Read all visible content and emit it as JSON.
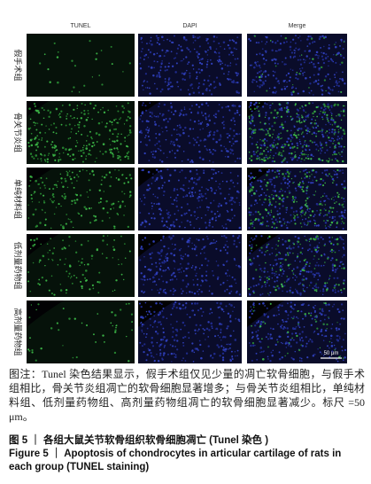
{
  "columns": [
    "TUNEL",
    "DAPI",
    "Merge"
  ],
  "rows": [
    "假手术组",
    "骨关节炎组",
    "单纯材料组",
    "低剂量药物组",
    "高剂量药物组"
  ],
  "scale_bar": "50 μm",
  "caption": "图注：Tunel 染色结果显示，假手术组仅见少量的凋亡软骨细胞，与假手术组相比，骨关节炎组凋亡的软骨细胞显著增多；与骨关节炎组相比，单纯材料组、低剂量药物组、高剂量药物组凋亡的软骨细胞显著减少。标尺 =50 μm。",
  "figure_title_cn": "图 5 ｜ 各组大鼠关节软骨组织软骨细胞凋亡 (Tunel 染色 )",
  "figure_title_en": "Figure 5 ｜ Apoptosis of chondrocytes in articular cartilage of rats in each group (TUNEL staining)"
}
